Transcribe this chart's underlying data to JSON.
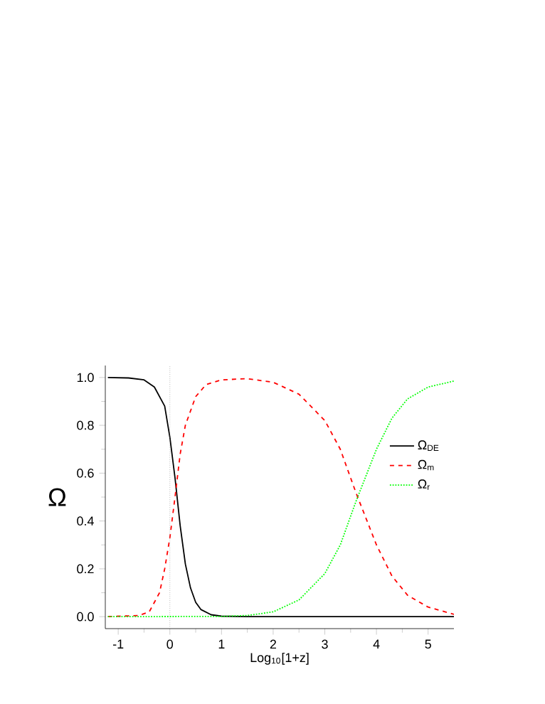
{
  "chart_data": {
    "type": "line",
    "xlabel": "Log$_{10}$[1+z]",
    "ylabel": "Ω",
    "xlim": [
      -1.25,
      5.5
    ],
    "ylim": [
      -0.05,
      1.05
    ],
    "xticks": [
      -1,
      0,
      1,
      2,
      3,
      4,
      5
    ],
    "yticks": [
      {
        "value": 0,
        "label": "0.0"
      },
      {
        "value": 0.2,
        "label": "0.2"
      },
      {
        "value": 0.4,
        "label": "0.4"
      },
      {
        "value": 0.6,
        "label": "0.6"
      },
      {
        "value": 0.8,
        "label": "0.8"
      },
      {
        "value": 1,
        "label": "1.0"
      }
    ],
    "grid": false,
    "legend": "right",
    "marker": "none",
    "ref_lines": [
      {
        "axis": "x",
        "value": 0,
        "color": "#999999",
        "line_style": "dotted"
      }
    ],
    "series": [
      {
        "name": "Ω$_{DE}$",
        "color": "#000000",
        "line_style": "solid",
        "x": [
          -1.2,
          -0.8,
          -0.5,
          -0.3,
          -0.1,
          0,
          0.1,
          0.2,
          0.3,
          0.4,
          0.5,
          0.6,
          0.8,
          1.0,
          1.5,
          5.5
        ],
        "values": [
          1.0,
          0.998,
          0.99,
          0.96,
          0.88,
          0.75,
          0.58,
          0.38,
          0.22,
          0.12,
          0.06,
          0.03,
          0.008,
          0.002,
          0,
          0
        ]
      },
      {
        "name": "Ω$_{m}$",
        "color": "#ff0000",
        "line_style": "dashed",
        "x": [
          -1.2,
          -0.6,
          -0.4,
          -0.2,
          -0.1,
          0,
          0.1,
          0.2,
          0.3,
          0.5,
          0.7,
          1,
          1.5,
          2,
          2.5,
          3,
          3.3,
          3.6,
          4,
          4.3,
          4.6,
          5,
          5.5
        ],
        "values": [
          0,
          0.005,
          0.02,
          0.1,
          0.2,
          0.33,
          0.5,
          0.68,
          0.8,
          0.92,
          0.97,
          0.99,
          0.995,
          0.98,
          0.93,
          0.82,
          0.7,
          0.52,
          0.3,
          0.17,
          0.09,
          0.04,
          0.01
        ]
      },
      {
        "name": "Ω$_{r}$",
        "color": "#00ff00",
        "line_style": "dotted",
        "x": [
          -1.2,
          1,
          1.5,
          2,
          2.5,
          3,
          3.3,
          3.6,
          4,
          4.3,
          4.6,
          5,
          5.5
        ],
        "values": [
          0,
          0.001,
          0.005,
          0.02,
          0.07,
          0.18,
          0.3,
          0.48,
          0.7,
          0.83,
          0.91,
          0.96,
          0.985
        ]
      }
    ]
  }
}
